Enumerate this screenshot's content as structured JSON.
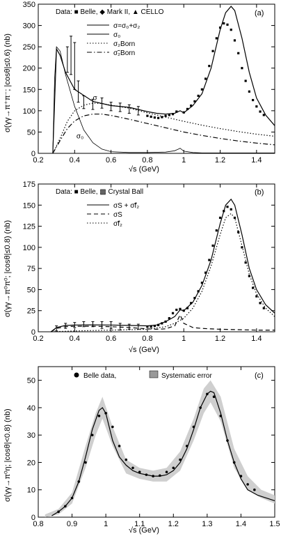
{
  "chart_data": [
    {
      "type": "line",
      "panel_label": "(a)",
      "xlabel": "√s  (GeV)",
      "ylabel": "σ(γγ→π⁺π⁻; |cosθ|≤0.6)  (nb)",
      "xlim": [
        0.2,
        1.5
      ],
      "ylim": [
        0,
        350
      ],
      "xticks": [
        "0.2",
        "0.4",
        "0.6",
        "0.8",
        "1",
        "1.2",
        "1.4"
      ],
      "yticks": [
        "0",
        "50",
        "100",
        "150",
        "200",
        "250",
        "300",
        "350"
      ],
      "data_legend": "Data:  ■ Belle, ◆ Mark II, ▲ CELLO",
      "series": [
        {
          "name": "σ=σ₀+σ₂",
          "style": "solid",
          "x": [
            0.28,
            0.3,
            0.32,
            0.35,
            0.4,
            0.5,
            0.6,
            0.7,
            0.8,
            0.85,
            0.9,
            0.95,
            0.98,
            1.0,
            1.05,
            1.1,
            1.15,
            1.2,
            1.23,
            1.26,
            1.28,
            1.32,
            1.36,
            1.4,
            1.45,
            1.5
          ],
          "y": [
            0,
            245,
            230,
            190,
            150,
            122,
            112,
            108,
            98,
            94,
            92,
            94,
            100,
            95,
            112,
            140,
            200,
            290,
            330,
            345,
            335,
            270,
            190,
            130,
            90,
            65
          ]
        },
        {
          "name": "σ₀",
          "style": "thin-solid",
          "x": [
            0.28,
            0.29,
            0.3,
            0.32,
            0.35,
            0.4,
            0.45,
            0.5,
            0.55,
            0.6,
            0.7,
            0.8,
            0.9,
            0.95,
            0.98,
            1.0,
            1.05,
            1.1,
            1.5
          ],
          "y": [
            0,
            175,
            250,
            240,
            185,
            110,
            55,
            25,
            10,
            4,
            2,
            2,
            3,
            6,
            12,
            5,
            2,
            1,
            1
          ]
        },
        {
          "name": "σ₂Born",
          "style": "dotted",
          "x": [
            0.28,
            0.32,
            0.36,
            0.4,
            0.45,
            0.5,
            0.55,
            0.6,
            0.7,
            0.8,
            0.9,
            1.0,
            1.1,
            1.2,
            1.3,
            1.4,
            1.5
          ],
          "y": [
            0,
            35,
            75,
            100,
            113,
            118,
            117,
            113,
            106,
            95,
            85,
            75,
            66,
            58,
            51,
            45,
            40
          ]
        },
        {
          "name": "σ̃₂Born",
          "style": "dash-dot",
          "x": [
            0.28,
            0.32,
            0.36,
            0.4,
            0.45,
            0.5,
            0.55,
            0.6,
            0.7,
            0.8,
            0.9,
            1.0,
            1.1,
            1.2,
            1.3,
            1.4,
            1.5
          ],
          "y": [
            0,
            30,
            58,
            76,
            88,
            92,
            92,
            89,
            80,
            70,
            60,
            50,
            42,
            35,
            29,
            24,
            20
          ]
        }
      ],
      "points": {
        "x": [
          0.8,
          0.82,
          0.84,
          0.86,
          0.88,
          0.9,
          0.92,
          0.94,
          0.96,
          1.0,
          1.02,
          1.04,
          1.06,
          1.08,
          1.1,
          1.12,
          1.14,
          1.16,
          1.18,
          1.2,
          1.22,
          1.24,
          1.26,
          1.28,
          1.3,
          1.32,
          1.34,
          1.36,
          1.38,
          1.4,
          1.42,
          1.44
        ],
        "y": [
          88,
          86,
          84,
          83,
          85,
          88,
          90,
          92,
          98,
          96,
          104,
          112,
          122,
          135,
          150,
          175,
          205,
          240,
          270,
          295,
          305,
          302,
          290,
          265,
          235,
          200,
          170,
          145,
          125,
          110,
          98,
          90
        ]
      },
      "data_bars": {
        "x": [
          0.36,
          0.38,
          0.4,
          0.42,
          0.45,
          0.5,
          0.55,
          0.6,
          0.65,
          0.7,
          0.75
        ],
        "y": [
          220,
          230,
          205,
          145,
          120,
          115,
          118,
          110,
          108,
          104,
          100
        ],
        "err": [
          30,
          45,
          55,
          25,
          15,
          12,
          12,
          10,
          10,
          10,
          10
        ]
      },
      "annotations": [
        "σ",
        "σ₀"
      ]
    },
    {
      "type": "line",
      "panel_label": "(b)",
      "xlabel": "√s  (GeV)",
      "ylabel": "σ(γγ→π⁰π⁰; |cosθ|≤0.8)  (nb)",
      "xlim": [
        0.2,
        1.5
      ],
      "ylim": [
        0,
        175
      ],
      "xticks": [
        "0.2",
        "0.4",
        "0.6",
        "0.8",
        "1",
        "1.2",
        "1.4"
      ],
      "yticks": [
        "0",
        "25",
        "50",
        "75",
        "100",
        "125",
        "150",
        "175"
      ],
      "data_legend": "Data:  ■ Belle, ▩ Crystal Ball",
      "series": [
        {
          "name": "σS + σ̃f₂",
          "style": "solid",
          "x": [
            0.27,
            0.3,
            0.35,
            0.4,
            0.5,
            0.6,
            0.7,
            0.8,
            0.85,
            0.9,
            0.95,
            0.98,
            1.0,
            1.05,
            1.1,
            1.15,
            1.2,
            1.23,
            1.26,
            1.28,
            1.32,
            1.36,
            1.4,
            1.45,
            1.5
          ],
          "y": [
            0,
            5,
            7.5,
            8,
            8.2,
            8,
            7.5,
            7,
            8,
            12,
            18,
            26,
            25,
            35,
            55,
            85,
            128,
            150,
            157,
            150,
            115,
            75,
            50,
            32,
            22
          ]
        },
        {
          "name": "σS",
          "style": "dashed",
          "x": [
            0.27,
            0.3,
            0.35,
            0.4,
            0.5,
            0.6,
            0.7,
            0.8,
            0.85,
            0.9,
            0.95,
            0.98,
            1.0,
            1.05,
            1.1,
            1.2,
            1.3,
            1.4,
            1.5
          ],
          "y": [
            0,
            4,
            6,
            6.5,
            6.5,
            6,
            5,
            3.5,
            3,
            3.5,
            7,
            20,
            10,
            5,
            4,
            3,
            2.5,
            2,
            2
          ]
        },
        {
          "name": "σ̃f₂",
          "style": "dotted",
          "x": [
            0.27,
            0.4,
            0.6,
            0.8,
            0.9,
            0.95,
            1.0,
            1.05,
            1.1,
            1.15,
            1.2,
            1.23,
            1.26,
            1.28,
            1.32,
            1.36,
            1.4,
            1.45,
            1.5
          ],
          "y": [
            0,
            1,
            2,
            3,
            6,
            10,
            16,
            28,
            48,
            78,
            115,
            135,
            140,
            135,
            102,
            68,
            45,
            28,
            18
          ]
        }
      ],
      "points": {
        "x": [
          0.8,
          0.82,
          0.84,
          0.86,
          0.88,
          0.9,
          0.92,
          0.94,
          0.96,
          0.98,
          1.0,
          1.02,
          1.04,
          1.06,
          1.08,
          1.1,
          1.12,
          1.14,
          1.16,
          1.18,
          1.2,
          1.22,
          1.24,
          1.26,
          1.28,
          1.3,
          1.32,
          1.34,
          1.36,
          1.38,
          1.4,
          1.42,
          1.44
        ],
        "y": [
          6,
          6,
          7,
          8,
          10,
          12,
          16,
          22,
          26,
          27,
          25,
          28,
          34,
          40,
          48,
          58,
          70,
          85,
          102,
          120,
          135,
          143,
          148,
          145,
          135,
          118,
          100,
          82,
          66,
          52,
          42,
          34,
          28
        ]
      },
      "data_bars": {
        "x": [
          0.3,
          0.35,
          0.4,
          0.45,
          0.5,
          0.55,
          0.6,
          0.65,
          0.7,
          0.75
        ],
        "y": [
          4,
          7,
          8,
          9,
          9,
          8,
          8,
          6,
          6,
          6
        ],
        "err": [
          3,
          3,
          3,
          3,
          3,
          4,
          4,
          4,
          3,
          3
        ]
      }
    },
    {
      "type": "line",
      "panel_label": "(c)",
      "xlabel": "√s  (GeV)",
      "ylabel": "σ(γγ→π⁰η; |cosθ|<0.8)  (nb)",
      "xlim": [
        0.8,
        1.5
      ],
      "ylim": [
        0,
        55
      ],
      "xticks": [
        "0.8",
        "0.9",
        "1",
        "1.1",
        "1.2",
        "1.3",
        "1.4",
        "1.5"
      ],
      "yticks": [
        "0",
        "10",
        "20",
        "30",
        "40",
        "50"
      ],
      "legend": [
        "Belle  data,",
        "Systematic error"
      ],
      "series": [
        {
          "name": "",
          "style": "solid",
          "x": [
            0.84,
            0.86,
            0.88,
            0.9,
            0.92,
            0.94,
            0.96,
            0.98,
            0.99,
            1.0,
            1.02,
            1.04,
            1.06,
            1.08,
            1.1,
            1.12,
            1.14,
            1.16,
            1.18,
            1.2,
            1.22,
            1.24,
            1.26,
            1.28,
            1.3,
            1.31,
            1.32,
            1.34,
            1.36,
            1.38,
            1.4,
            1.42,
            1.45,
            1.5
          ],
          "y": [
            0.5,
            2,
            4,
            7,
            13,
            22,
            32,
            39,
            40,
            38,
            28,
            22,
            19,
            17,
            16,
            15.5,
            15,
            15,
            15.5,
            17,
            20,
            25,
            32,
            40,
            45,
            46,
            45.5,
            38,
            28,
            20,
            14,
            10,
            8,
            6
          ]
        }
      ],
      "band": {
        "x": [
          0.82,
          0.86,
          0.9,
          0.94,
          0.97,
          0.99,
          1.02,
          1.06,
          1.1,
          1.14,
          1.18,
          1.22,
          1.26,
          1.29,
          1.31,
          1.34,
          1.38,
          1.42,
          1.46,
          1.5
        ],
        "y_low": [
          0,
          1,
          5,
          18,
          30,
          36,
          26,
          16,
          14,
          13,
          13,
          17,
          28,
          38,
          42,
          35,
          18,
          10,
          7,
          5
        ],
        "y_high": [
          1,
          3,
          9,
          26,
          38,
          44,
          33,
          21,
          18,
          17,
          18,
          24,
          36,
          47,
          50,
          44,
          25,
          15,
          10,
          8
        ]
      },
      "points": {
        "x": [
          0.86,
          0.88,
          0.9,
          0.92,
          0.94,
          0.96,
          0.98,
          1.0,
          1.02,
          1.04,
          1.06,
          1.08,
          1.1,
          1.12,
          1.14,
          1.16,
          1.18,
          1.2,
          1.22,
          1.24,
          1.26,
          1.28,
          1.3,
          1.32,
          1.34,
          1.36,
          1.38,
          1.4,
          1.42,
          1.44
        ],
        "y": [
          2,
          4,
          7,
          13,
          20,
          30,
          37,
          38,
          33,
          26,
          21,
          18,
          16.5,
          15.5,
          15,
          15.2,
          16.5,
          18,
          21,
          26,
          33,
          40,
          45,
          44,
          37,
          28,
          20,
          15,
          12,
          10
        ]
      }
    }
  ],
  "colors": {
    "ink": "#000000",
    "band": "#cfcfcf",
    "legend_box": "#999999"
  }
}
